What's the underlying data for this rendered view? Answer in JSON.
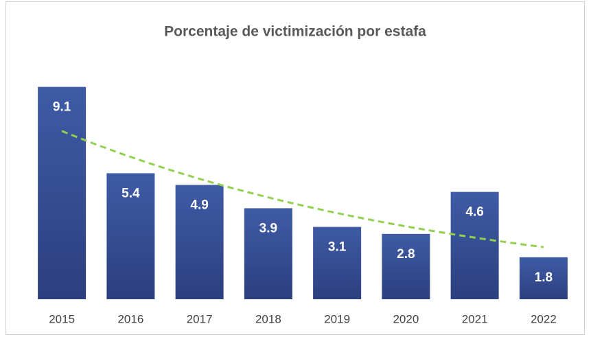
{
  "chart_data": {
    "type": "bar",
    "title": "Porcentaje de victimización por estafa",
    "categories": [
      "2015",
      "2016",
      "2017",
      "2018",
      "2019",
      "2020",
      "2021",
      "2022"
    ],
    "values": [
      9.1,
      5.4,
      4.9,
      3.9,
      3.1,
      2.8,
      4.6,
      1.8
    ],
    "color": "#3b559e",
    "ylim": [
      0,
      10
    ],
    "trendline": {
      "type": "exponential",
      "color": "#92d050"
    }
  }
}
